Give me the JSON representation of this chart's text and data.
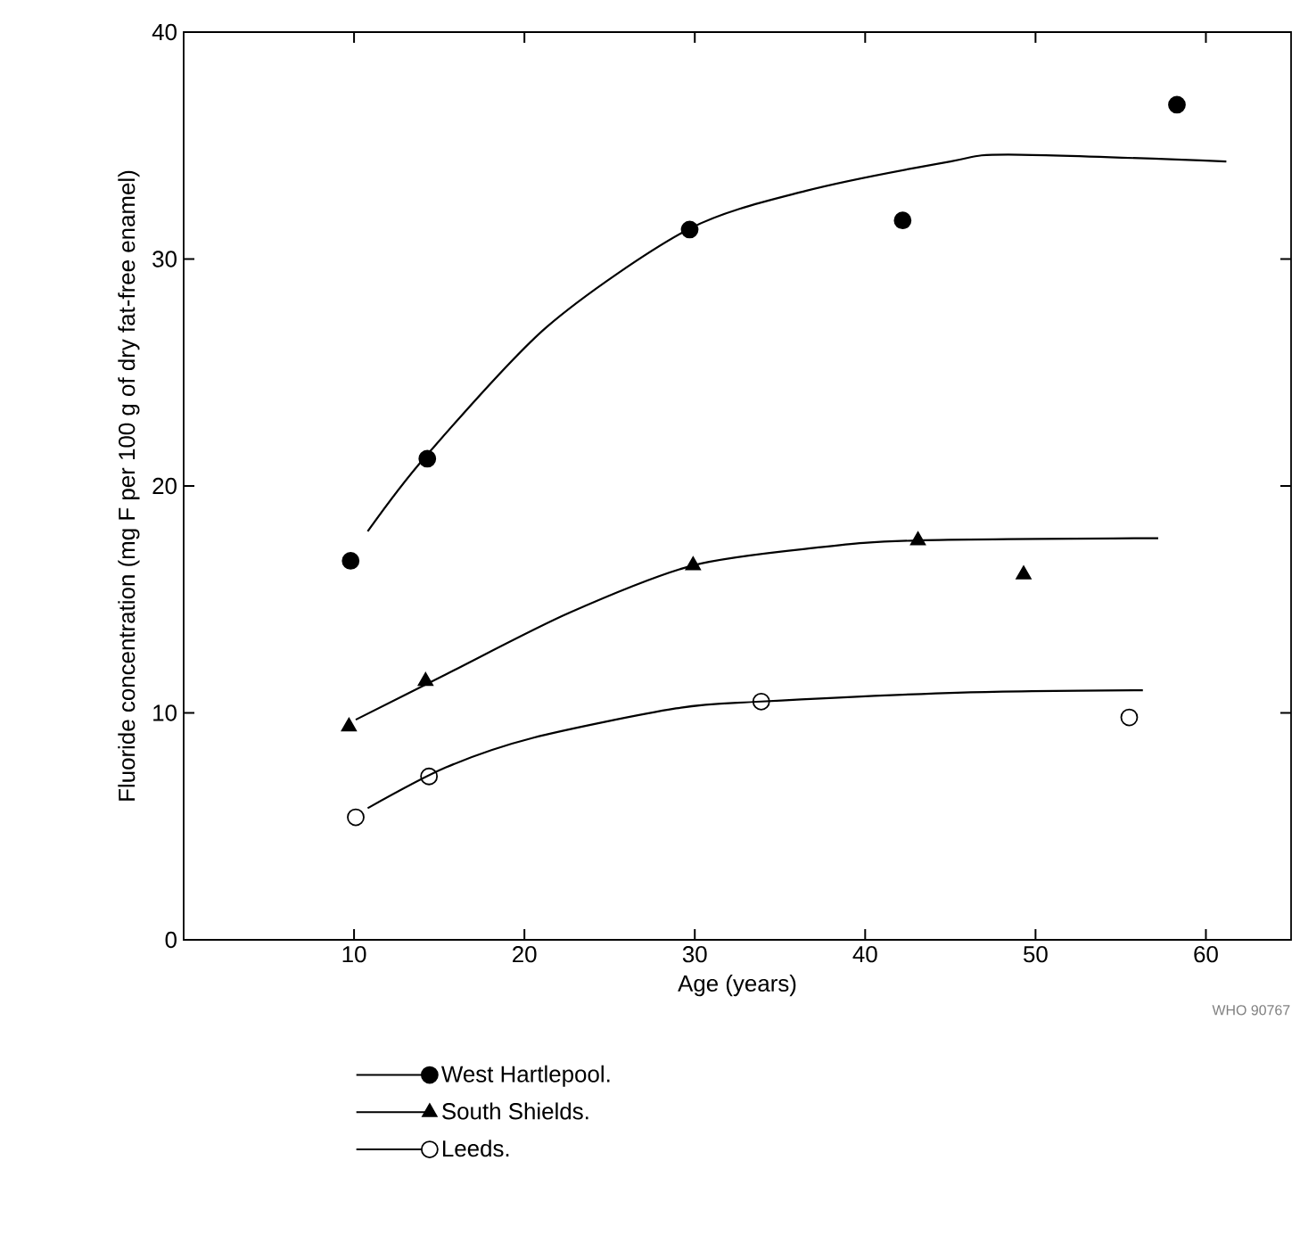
{
  "chart_data": {
    "type": "scatter",
    "xlabel": "Age (years)",
    "ylabel": "Fluoride concentration (mg F per 100 g of dry fat-free enamel)",
    "xlim": [
      0,
      65
    ],
    "ylim": [
      0,
      40
    ],
    "xticks": [
      10,
      20,
      30,
      40,
      50,
      60
    ],
    "yticks": [
      0,
      10,
      20,
      30,
      40
    ],
    "legend": "bottom",
    "annotations": [
      "WHO 90767"
    ],
    "series": [
      {
        "name": "West Hartlepool.",
        "marker": "circle",
        "color": "#000000",
        "x": [
          9.8,
          14.3,
          29.7,
          42.2,
          58.3
        ],
        "values": [
          16.7,
          21.2,
          31.3,
          31.7,
          36.8
        ]
      },
      {
        "name": "South Shields.",
        "marker": "triangle",
        "color": "#000000",
        "x": [
          9.7,
          14.2,
          29.9,
          43.1,
          49.3
        ],
        "values": [
          9.4,
          11.4,
          16.5,
          17.6,
          16.1
        ]
      },
      {
        "name": "Leeds.",
        "marker": "circle",
        "color": "#ffffff",
        "x": [
          10.1,
          14.4,
          33.9,
          55.5
        ],
        "values": [
          5.4,
          7.2,
          10.5,
          9.8
        ]
      },
      {
        "type": "line",
        "marker": "none",
        "color": "#000000",
        "x": [
          10.8,
          14.2,
          21.3,
          29.6,
          36.5,
          45,
          48.4,
          61.2
        ],
        "values": [
          18.0,
          21.3,
          27.0,
          31.3,
          33.0,
          34.3,
          34.6,
          34.3
        ]
      },
      {
        "type": "line",
        "marker": "none",
        "color": "#000000",
        "x": [
          10.1,
          15.4,
          22.6,
          29.9,
          37.4,
          43.1,
          57.2
        ],
        "values": [
          9.7,
          11.7,
          14.4,
          16.5,
          17.3,
          17.6,
          17.7
        ]
      },
      {
        "type": "line",
        "marker": "none",
        "color": "#000000",
        "x": [
          10.8,
          15.4,
          20.5,
          28.9,
          33.9,
          45.8,
          56.3
        ],
        "values": [
          5.8,
          7.6,
          8.9,
          10.2,
          10.5,
          10.9,
          11.0
        ]
      }
    ]
  }
}
